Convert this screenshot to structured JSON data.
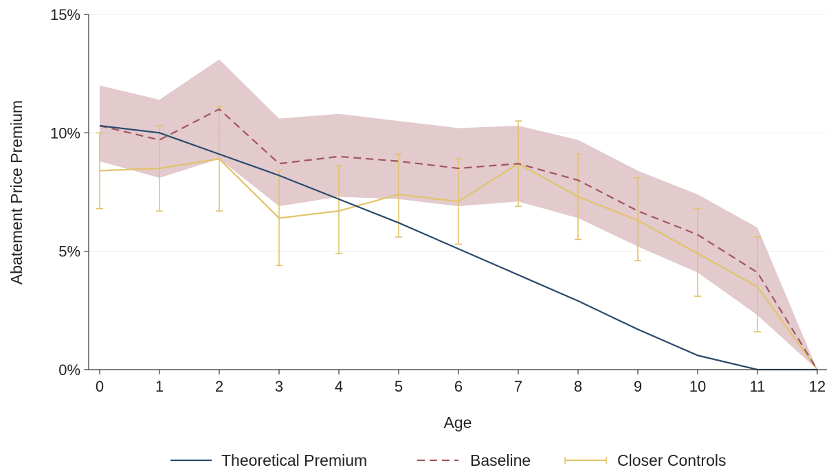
{
  "chart_data": {
    "type": "line",
    "title": "",
    "xlabel": "Age",
    "ylabel": "Abatement Price Premium",
    "x": [
      0,
      1,
      2,
      3,
      4,
      5,
      6,
      7,
      8,
      9,
      10,
      11,
      12
    ],
    "x_ticks": [
      "0",
      "1",
      "2",
      "3",
      "4",
      "5",
      "6",
      "7",
      "8",
      "9",
      "10",
      "11",
      "12"
    ],
    "y_ticks": [
      {
        "value": 0,
        "label": "0%"
      },
      {
        "value": 5,
        "label": "5%"
      },
      {
        "value": 10,
        "label": "10%"
      },
      {
        "value": 15,
        "label": "15%"
      }
    ],
    "xlim": [
      0,
      12
    ],
    "ylim": [
      0,
      15
    ],
    "grid": true,
    "legend_position": "bottom",
    "series": [
      {
        "name": "Theoretical Premium",
        "style": "solid",
        "color": "#2a4a6b",
        "values": [
          10.3,
          10.0,
          9.1,
          8.2,
          7.2,
          6.2,
          5.1,
          4.0,
          2.9,
          1.7,
          0.6,
          0.0,
          0.0
        ]
      },
      {
        "name": "Baseline",
        "style": "dashed",
        "color": "#a2545f",
        "band_color": "#d6b3b8",
        "values": [
          10.3,
          9.7,
          11.0,
          8.7,
          9.0,
          8.8,
          8.5,
          8.7,
          8.0,
          6.7,
          5.7,
          4.1,
          0.0
        ],
        "band_upper": [
          12.0,
          11.4,
          13.1,
          10.6,
          10.8,
          10.5,
          10.2,
          10.3,
          9.7,
          8.4,
          7.4,
          6.0,
          0.0
        ],
        "band_lower": [
          8.8,
          8.1,
          8.9,
          6.9,
          7.3,
          7.2,
          6.9,
          7.1,
          6.4,
          5.2,
          4.1,
          2.3,
          0.0
        ]
      },
      {
        "name": "Closer Controls",
        "style": "solid-errorbars",
        "color": "#e2c36a",
        "values": [
          8.4,
          8.5,
          8.9,
          6.4,
          6.7,
          7.4,
          7.1,
          8.7,
          7.3,
          6.3,
          4.9,
          3.5,
          0.0
        ],
        "ci_upper": [
          10.0,
          10.3,
          11.1,
          8.4,
          8.6,
          9.1,
          8.9,
          10.5,
          9.1,
          8.1,
          6.8,
          5.6,
          0.0
        ],
        "ci_lower": [
          6.8,
          6.7,
          6.7,
          4.4,
          4.9,
          5.6,
          5.3,
          6.9,
          5.5,
          4.6,
          3.1,
          1.6,
          0.0
        ]
      }
    ]
  }
}
